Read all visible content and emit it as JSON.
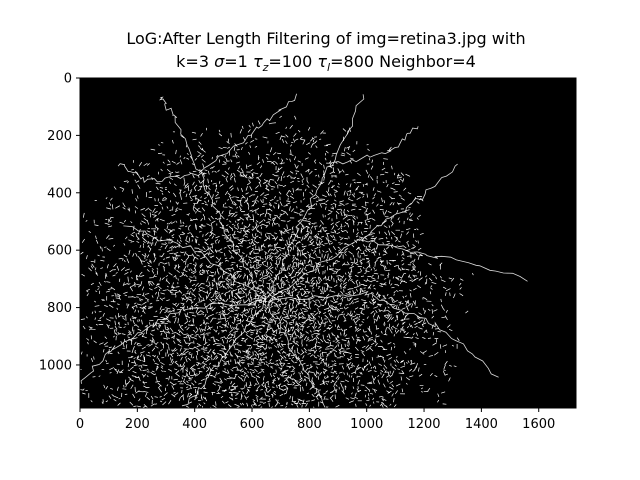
{
  "chart_data": {
    "type": "heatmap",
    "title_line1": "LoG:After Length Filtering of img=retina3.jpg with",
    "title_line2": {
      "k": "k=3",
      "sigma_sym": "σ",
      "sigma_val": "=1",
      "tau_sym": "τ",
      "tau_z_sub": "z",
      "tau_z_val": "=100",
      "tau_l_sub": "l",
      "tau_l_val": "=800",
      "neighbor": "Neighbor=4"
    },
    "xlabel": "",
    "ylabel": "",
    "xlim": [
      0,
      1730
    ],
    "ylim": [
      1150,
      0
    ],
    "x_ticks": [
      0,
      200,
      400,
      600,
      800,
      1000,
      1200,
      1400,
      1600
    ],
    "y_ticks": [
      0,
      200,
      400,
      600,
      800,
      1000
    ],
    "colormap": {
      "background": "#000000",
      "foreground": "#ffffff"
    },
    "grid": false,
    "structure": {
      "optic_disc_center": [
        650,
        780
      ],
      "vessel_branches": [
        [
          [
            650,
            780
          ],
          [
            520,
            560
          ],
          [
            420,
            330
          ],
          [
            330,
            140
          ],
          [
            280,
            60
          ]
        ],
        [
          [
            650,
            780
          ],
          [
            760,
            520
          ],
          [
            880,
            300
          ],
          [
            990,
            60
          ]
        ],
        [
          [
            650,
            780
          ],
          [
            980,
            560
          ],
          [
            1160,
            440
          ],
          [
            1320,
            300
          ]
        ],
        [
          [
            650,
            780
          ],
          [
            1000,
            750
          ],
          [
            1240,
            860
          ],
          [
            1460,
            1040
          ]
        ],
        [
          [
            650,
            780
          ],
          [
            760,
            980
          ],
          [
            860,
            1150
          ]
        ],
        [
          [
            650,
            780
          ],
          [
            480,
            1000
          ],
          [
            360,
            1150
          ]
        ],
        [
          [
            650,
            780
          ],
          [
            360,
            800
          ],
          [
            120,
            940
          ],
          [
            0,
            1060
          ]
        ],
        [
          [
            650,
            780
          ],
          [
            400,
            600
          ],
          [
            160,
            520
          ]
        ],
        [
          [
            880,
            300
          ],
          [
            1080,
            260
          ],
          [
            1180,
            160
          ]
        ],
        [
          [
            980,
            560
          ],
          [
            1240,
            620
          ],
          [
            1560,
            700
          ]
        ],
        [
          [
            420,
            330
          ],
          [
            240,
            360
          ],
          [
            130,
            300
          ]
        ],
        [
          [
            420,
            330
          ],
          [
            620,
            180
          ],
          [
            760,
            60
          ]
        ]
      ]
    }
  }
}
